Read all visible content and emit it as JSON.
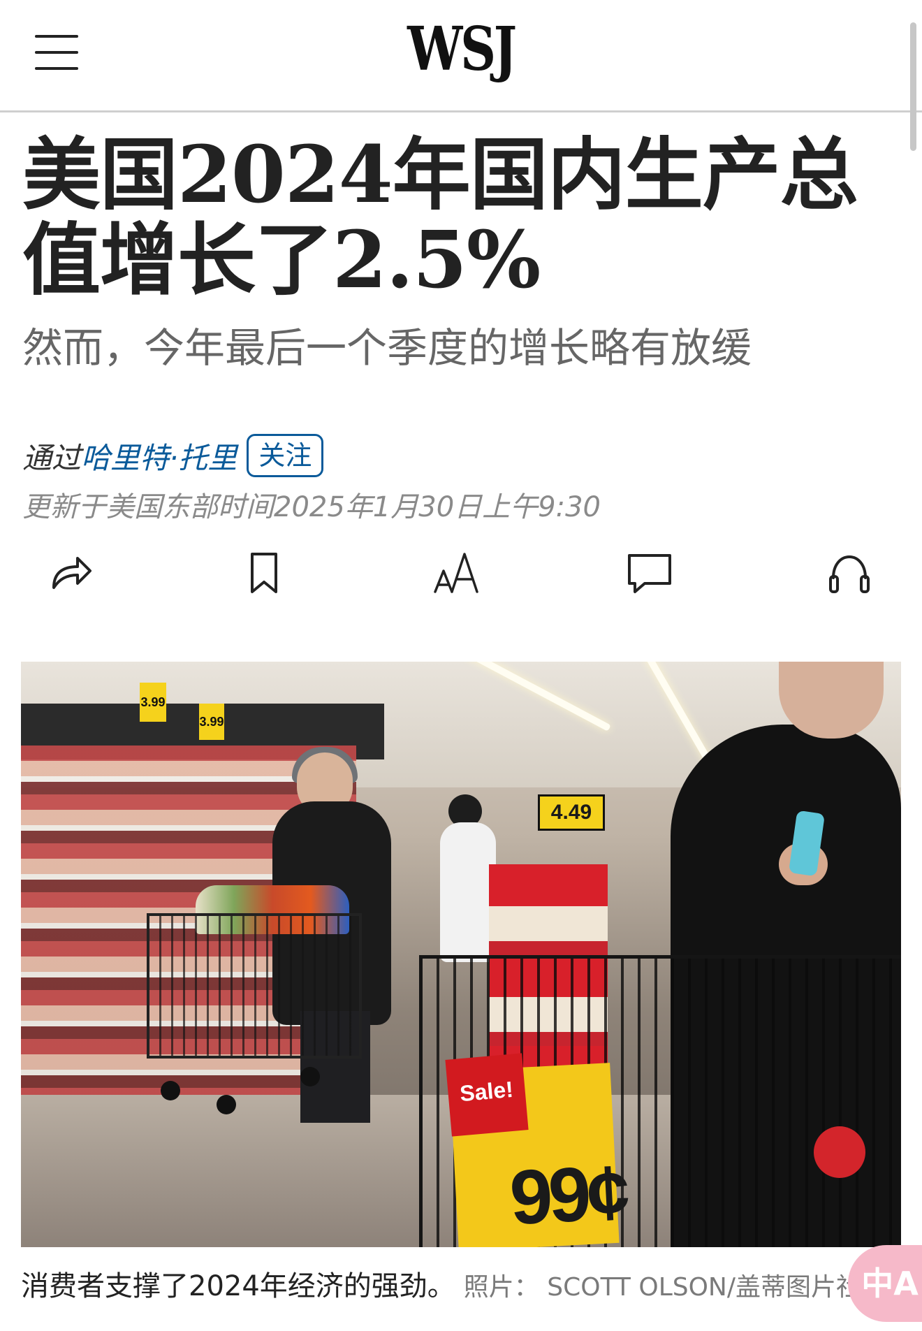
{
  "header": {
    "logo": "WSJ",
    "menu_icon": "hamburger-menu-icon"
  },
  "article": {
    "headline": "美国2024年国内生产总值增长了2.5%",
    "dek": "然而，今年最后一个季度的增长略有放缓",
    "byline_prefix": "通过",
    "author": "哈里特·托里",
    "follow_label": "关注",
    "timestamp": "更新于美国东部时间2025年1月30日上午9:30"
  },
  "toolbar": {
    "icons": [
      "share-icon",
      "bookmark-icon",
      "text-size-icon",
      "comment-icon",
      "listen-headphones-icon"
    ]
  },
  "photo": {
    "shelf_price_1": "3.99",
    "shelf_price_2": "3.99",
    "display_price": "4.49",
    "sale_label": "Sale!",
    "sale_price": "99¢"
  },
  "caption": {
    "text": "消费者支撑了2024年经济的强劲。",
    "credit": "照片： SCOTT OLSON/盖蒂图片社"
  },
  "translate_button": {
    "label": "中A",
    "color": "#f6b9c9"
  },
  "colors": {
    "link": "#0a5a9a",
    "headline": "#222222",
    "dek": "#666666",
    "timestamp": "#8a8a8a"
  }
}
